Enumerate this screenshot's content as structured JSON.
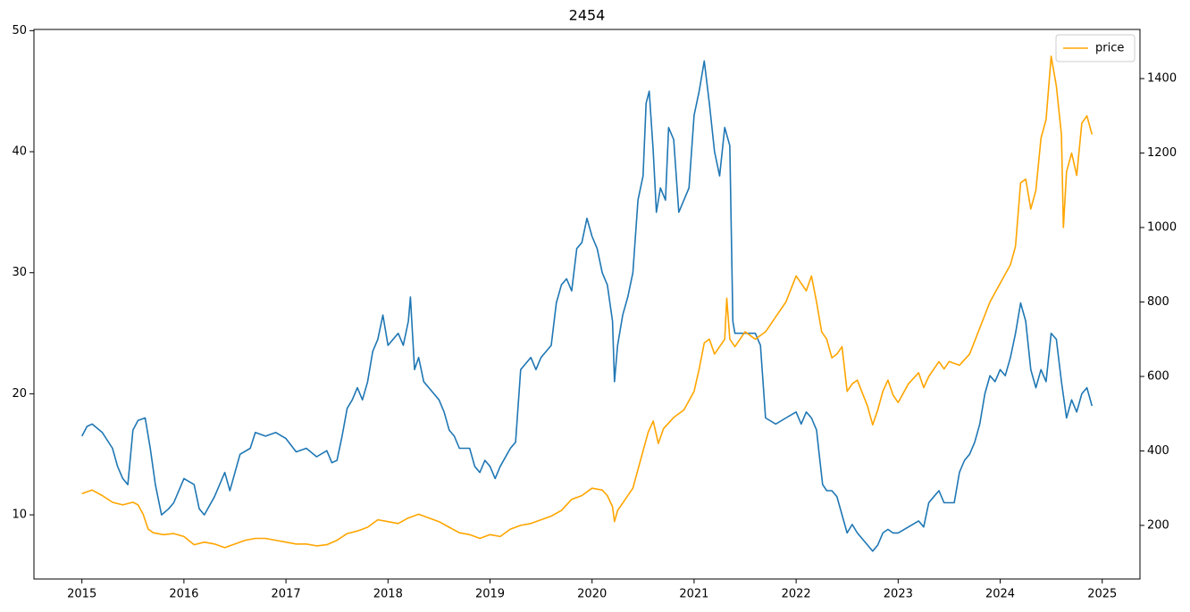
{
  "chart_data": {
    "type": "line",
    "title": "2454",
    "xlim": [
      2014.53,
      2025.37
    ],
    "xticks": [
      2015,
      2016,
      2017,
      2018,
      2019,
      2020,
      2021,
      2022,
      2023,
      2024,
      2025
    ],
    "ylim": [
      4.7,
      50.1
    ],
    "yticks": [
      10,
      20,
      30,
      40,
      50
    ],
    "y2lim": [
      56,
      1532
    ],
    "y2ticks": [
      200,
      400,
      600,
      800,
      1000,
      1200,
      1400
    ],
    "grid": false,
    "legend": "upper right",
    "series": [
      {
        "color": "#1f77b4",
        "x": [
          2015.0,
          2015.05,
          2015.1,
          2015.2,
          2015.3,
          2015.35,
          2015.4,
          2015.45,
          2015.5,
          2015.55,
          2015.62,
          2015.67,
          2015.72,
          2015.78,
          2015.85,
          2015.9,
          2016.0,
          2016.1,
          2016.15,
          2016.2,
          2016.3,
          2016.4,
          2016.45,
          2016.55,
          2016.65,
          2016.7,
          2016.8,
          2016.9,
          2017.0,
          2017.1,
          2017.2,
          2017.3,
          2017.4,
          2017.45,
          2017.5,
          2017.55,
          2017.6,
          2017.65,
          2017.7,
          2017.75,
          2017.8,
          2017.85,
          2017.9,
          2017.95,
          2018.0,
          2018.05,
          2018.1,
          2018.15,
          2018.2,
          2018.22,
          2018.26,
          2018.3,
          2018.35,
          2018.45,
          2018.5,
          2018.55,
          2018.6,
          2018.65,
          2018.7,
          2018.8,
          2018.85,
          2018.9,
          2018.95,
          2019.0,
          2019.05,
          2019.1,
          2019.2,
          2019.25,
          2019.3,
          2019.35,
          2019.4,
          2019.45,
          2019.5,
          2019.55,
          2019.6,
          2019.65,
          2019.7,
          2019.75,
          2019.8,
          2019.85,
          2019.9,
          2019.95,
          2020.0,
          2020.05,
          2020.1,
          2020.15,
          2020.2,
          2020.22,
          2020.25,
          2020.3,
          2020.35,
          2020.4,
          2020.45,
          2020.5,
          2020.53,
          2020.56,
          2020.6,
          2020.63,
          2020.67,
          2020.72,
          2020.75,
          2020.8,
          2020.85,
          2020.9,
          2020.95,
          2021.0,
          2021.05,
          2021.1,
          2021.15,
          2021.2,
          2021.25,
          2021.3,
          2021.35,
          2021.38,
          2021.4,
          2021.5,
          2021.6,
          2021.65,
          2021.7,
          2021.8,
          2021.9,
          2022.0,
          2022.05,
          2022.1,
          2022.15,
          2022.2,
          2022.22,
          2022.26,
          2022.3,
          2022.35,
          2022.4,
          2022.45,
          2022.5,
          2022.55,
          2022.6,
          2022.7,
          2022.75,
          2022.8,
          2022.85,
          2022.9,
          2022.95,
          2023.0,
          2023.1,
          2023.2,
          2023.25,
          2023.3,
          2023.35,
          2023.4,
          2023.45,
          2023.5,
          2023.55,
          2023.6,
          2023.65,
          2023.7,
          2023.75,
          2023.8,
          2023.85,
          2023.9,
          2023.95,
          2024.0,
          2024.05,
          2024.1,
          2024.15,
          2024.2,
          2024.25,
          2024.3,
          2024.35,
          2024.4,
          2024.45,
          2024.5,
          2024.55,
          2024.6,
          2024.65,
          2024.7,
          2024.75,
          2024.8,
          2024.85,
          2024.9
        ],
        "values": [
          16.5,
          17.3,
          17.5,
          16.8,
          15.5,
          14.0,
          13.0,
          12.5,
          17.0,
          17.8,
          18.0,
          15.5,
          12.5,
          10.0,
          10.5,
          11.0,
          13.0,
          12.5,
          10.5,
          10.0,
          11.5,
          13.5,
          12.0,
          15.0,
          15.5,
          16.8,
          16.5,
          16.8,
          16.3,
          15.2,
          15.5,
          14.8,
          15.3,
          14.3,
          14.5,
          16.5,
          18.8,
          19.5,
          20.5,
          19.5,
          21.0,
          23.5,
          24.5,
          26.5,
          24.0,
          24.5,
          25.0,
          24.0,
          26.0,
          28.0,
          22.0,
          23.0,
          21.0,
          20.0,
          19.5,
          18.5,
          17.0,
          16.5,
          15.5,
          15.5,
          14.0,
          13.5,
          14.5,
          14.0,
          13.0,
          14.0,
          15.5,
          16.0,
          22.0,
          22.5,
          23.0,
          22.0,
          23.0,
          23.5,
          24.0,
          27.5,
          29.0,
          29.5,
          28.5,
          32.0,
          32.5,
          34.5,
          33.0,
          32.0,
          30.0,
          29.0,
          26.0,
          21.0,
          24.0,
          26.5,
          28.0,
          30.0,
          36.0,
          38.0,
          44.0,
          45.0,
          40.0,
          35.0,
          37.0,
          36.0,
          42.0,
          41.0,
          35.0,
          36.0,
          37.0,
          43.0,
          45.0,
          47.5,
          44.0,
          40.0,
          38.0,
          42.0,
          40.5,
          26.0,
          25.0,
          25.0,
          25.0,
          24.0,
          18.0,
          17.5,
          18.0,
          18.5,
          17.5,
          18.5,
          18.0,
          17.0,
          15.5,
          12.5,
          12.0,
          12.0,
          11.5,
          10.0,
          8.5,
          9.2,
          8.5,
          7.5,
          7.0,
          7.5,
          8.5,
          8.8,
          8.5,
          8.5,
          9.0,
          9.5,
          9.0,
          11.0,
          11.5,
          12.0,
          11.0,
          11.0,
          11.0,
          13.5,
          14.5,
          15.0,
          16.0,
          17.5,
          20.0,
          21.5,
          21.0,
          22.0,
          21.5,
          23.0,
          25.0,
          27.5,
          26.0,
          22.0,
          20.5,
          22.0,
          21.0,
          25.0,
          24.5,
          21.0,
          18.0,
          19.5,
          18.5,
          20.0,
          20.5,
          19.0
        ]
      },
      {
        "name": "price",
        "color": "#ffa500",
        "axis": "y2",
        "x": [
          2015.0,
          2015.1,
          2015.2,
          2015.3,
          2015.4,
          2015.5,
          2015.55,
          2015.6,
          2015.65,
          2015.7,
          2015.8,
          2015.9,
          2016.0,
          2016.1,
          2016.2,
          2016.3,
          2016.4,
          2016.5,
          2016.6,
          2016.7,
          2016.8,
          2016.9,
          2017.0,
          2017.1,
          2017.2,
          2017.3,
          2017.4,
          2017.5,
          2017.6,
          2017.7,
          2017.8,
          2017.9,
          2018.0,
          2018.1,
          2018.2,
          2018.3,
          2018.4,
          2018.5,
          2018.6,
          2018.7,
          2018.8,
          2018.9,
          2019.0,
          2019.1,
          2019.2,
          2019.3,
          2019.4,
          2019.5,
          2019.6,
          2019.7,
          2019.8,
          2019.9,
          2020.0,
          2020.1,
          2020.15,
          2020.2,
          2020.22,
          2020.25,
          2020.3,
          2020.4,
          2020.45,
          2020.5,
          2020.55,
          2020.6,
          2020.65,
          2020.7,
          2020.8,
          2020.9,
          2021.0,
          2021.05,
          2021.1,
          2021.15,
          2021.2,
          2021.25,
          2021.3,
          2021.32,
          2021.35,
          2021.4,
          2021.5,
          2021.6,
          2021.7,
          2021.8,
          2021.9,
          2022.0,
          2022.05,
          2022.1,
          2022.15,
          2022.2,
          2022.25,
          2022.3,
          2022.35,
          2022.4,
          2022.45,
          2022.5,
          2022.55,
          2022.6,
          2022.7,
          2022.75,
          2022.8,
          2022.85,
          2022.9,
          2022.95,
          2023.0,
          2023.1,
          2023.2,
          2023.25,
          2023.3,
          2023.4,
          2023.45,
          2023.5,
          2023.6,
          2023.7,
          2023.8,
          2023.9,
          2024.0,
          2024.1,
          2024.15,
          2024.2,
          2024.25,
          2024.3,
          2024.35,
          2024.4,
          2024.45,
          2024.5,
          2024.55,
          2024.6,
          2024.62,
          2024.65,
          2024.7,
          2024.75,
          2024.8,
          2024.85,
          2024.9
        ],
        "values": [
          285,
          295,
          280,
          262,
          255,
          262,
          255,
          230,
          190,
          180,
          175,
          178,
          170,
          148,
          155,
          150,
          140,
          150,
          160,
          165,
          165,
          160,
          155,
          150,
          150,
          145,
          148,
          160,
          178,
          185,
          195,
          215,
          210,
          205,
          220,
          230,
          220,
          210,
          195,
          180,
          175,
          165,
          175,
          170,
          190,
          200,
          205,
          215,
          225,
          240,
          270,
          280,
          300,
          295,
          280,
          250,
          210,
          240,
          260,
          300,
          350,
          400,
          450,
          480,
          420,
          460,
          490,
          510,
          560,
          620,
          690,
          700,
          660,
          680,
          700,
          810,
          700,
          680,
          720,
          700,
          720,
          760,
          800,
          870,
          850,
          830,
          870,
          800,
          720,
          700,
          650,
          660,
          680,
          560,
          580,
          590,
          520,
          470,
          510,
          560,
          590,
          550,
          530,
          580,
          610,
          570,
          600,
          640,
          620,
          640,
          630,
          660,
          730,
          800,
          850,
          900,
          950,
          1120,
          1130,
          1050,
          1100,
          1240,
          1290,
          1460,
          1380,
          1250,
          1000,
          1150,
          1200,
          1140,
          1280,
          1300,
          1250
        ]
      }
    ]
  }
}
